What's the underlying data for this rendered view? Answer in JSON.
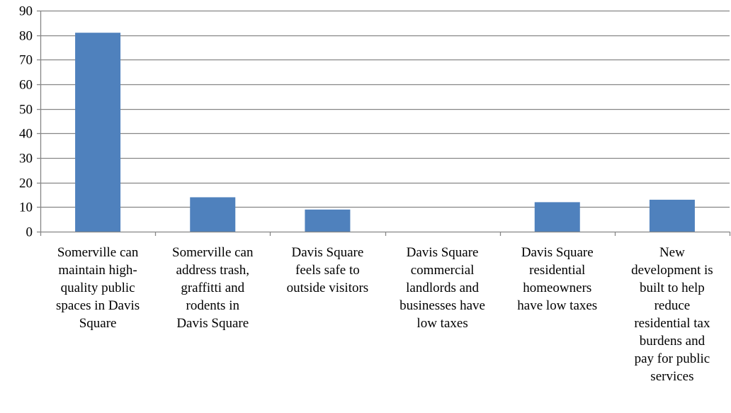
{
  "colors": {
    "bar": "#4f81bd",
    "grid": "#868686",
    "axis": "#868686"
  },
  "chart_data": {
    "type": "bar",
    "title": "",
    "xlabel": "",
    "ylabel": "",
    "ylim": [
      0,
      90
    ],
    "yticks": [
      0,
      10,
      20,
      30,
      40,
      50,
      60,
      70,
      80,
      90
    ],
    "grid": true,
    "legend": "none",
    "categories": [
      "Somerville can maintain high-quality public spaces in Davis Square",
      "Somerville can address trash, graffitti and rodents in Davis Square",
      "Davis Square feels safe to outside visitors",
      "Davis Square commercial landlords and businesses have low taxes",
      "Davis Square residential homeowners have low taxes",
      "New development is built to help reduce residential tax burdens and pay for public services"
    ],
    "category_lines": [
      [
        "Somerville can",
        "maintain high-",
        "quality public",
        "spaces in Davis",
        "Square"
      ],
      [
        "Somerville can",
        "address trash,",
        "graffitti and",
        "rodents in",
        "Davis Square"
      ],
      [
        "Davis Square",
        "feels safe to",
        "outside visitors"
      ],
      [
        "Davis Square",
        "commercial",
        "landlords and",
        "businesses have",
        "low taxes"
      ],
      [
        "Davis Square",
        "residential",
        "homeowners",
        "have low taxes"
      ],
      [
        "New",
        "development is",
        "built to help",
        "reduce",
        "residential tax",
        "burdens and",
        "pay for public",
        "services"
      ]
    ],
    "values": [
      81,
      14,
      9,
      0,
      12,
      13
    ]
  }
}
